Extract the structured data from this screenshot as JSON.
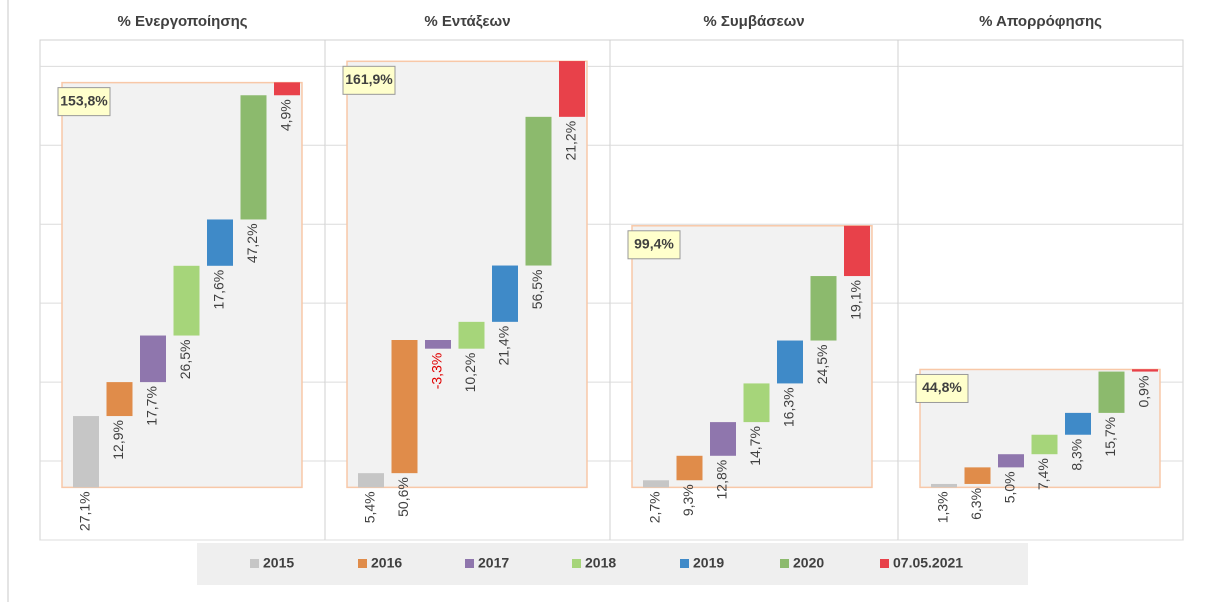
{
  "legend": [
    {
      "name": "2015",
      "color": "#c6c6c6"
    },
    {
      "name": "2016",
      "color": "#e08c4a"
    },
    {
      "name": "2017",
      "color": "#8f76ad"
    },
    {
      "name": "2018",
      "color": "#a6d57a"
    },
    {
      "name": "2019",
      "color": "#3f8ac8"
    },
    {
      "name": "2020",
      "color": "#8cba6d"
    },
    {
      "name": "07.05.2021",
      "color": "#e8414a"
    }
  ],
  "chart_data": [
    {
      "type": "waterfall",
      "title": "% Ενεργοποίησης",
      "values": [
        27.1,
        12.9,
        17.7,
        26.5,
        17.6,
        47.2,
        4.9
      ],
      "value_labels": [
        "27,1%",
        "12,9%",
        "17,7%",
        "26,5%",
        "17,6%",
        "47,2%",
        "4,9%"
      ],
      "total": 153.8,
      "total_label": "153,8%",
      "ylim": [
        -20,
        170
      ],
      "yticks": [
        -20,
        10,
        40,
        70,
        100,
        130,
        160
      ]
    },
    {
      "type": "waterfall",
      "title": "% Εντάξεων",
      "values": [
        5.4,
        50.6,
        -3.3,
        10.2,
        21.4,
        56.5,
        21.2
      ],
      "value_labels": [
        "5,4%",
        "50,6%",
        "-3,3%",
        "10,2%",
        "21,4%",
        "56,5%",
        "21,2%"
      ],
      "total": 161.9,
      "total_label": "161,9%",
      "ylim": [
        -20,
        170
      ],
      "yticks": [
        -20,
        10,
        40,
        70,
        100,
        130,
        160
      ]
    },
    {
      "type": "waterfall",
      "title": "% Συμβάσεων",
      "values": [
        2.7,
        9.3,
        12.8,
        14.7,
        16.3,
        24.5,
        19.1
      ],
      "value_labels": [
        "2,7%",
        "9,3%",
        "12,8%",
        "14,7%",
        "16,3%",
        "24,5%",
        "19,1%"
      ],
      "total": 99.4,
      "total_label": "99,4%",
      "ylim": [
        -20,
        170
      ],
      "yticks": [
        -20,
        10,
        40,
        70,
        100,
        130,
        160
      ]
    },
    {
      "type": "waterfall",
      "title": "% Απορρόφησης",
      "values": [
        1.3,
        6.3,
        5.0,
        7.4,
        8.3,
        15.7,
        0.9
      ],
      "value_labels": [
        "1,3%",
        "6,3%",
        "5,0%",
        "7,4%",
        "8,3%",
        "15,7%",
        "0,9%"
      ],
      "total": 44.8,
      "total_label": "44,8%",
      "ylim": [
        -20,
        170
      ],
      "yticks": [
        -20,
        10,
        40,
        70,
        100,
        130,
        160
      ]
    }
  ]
}
